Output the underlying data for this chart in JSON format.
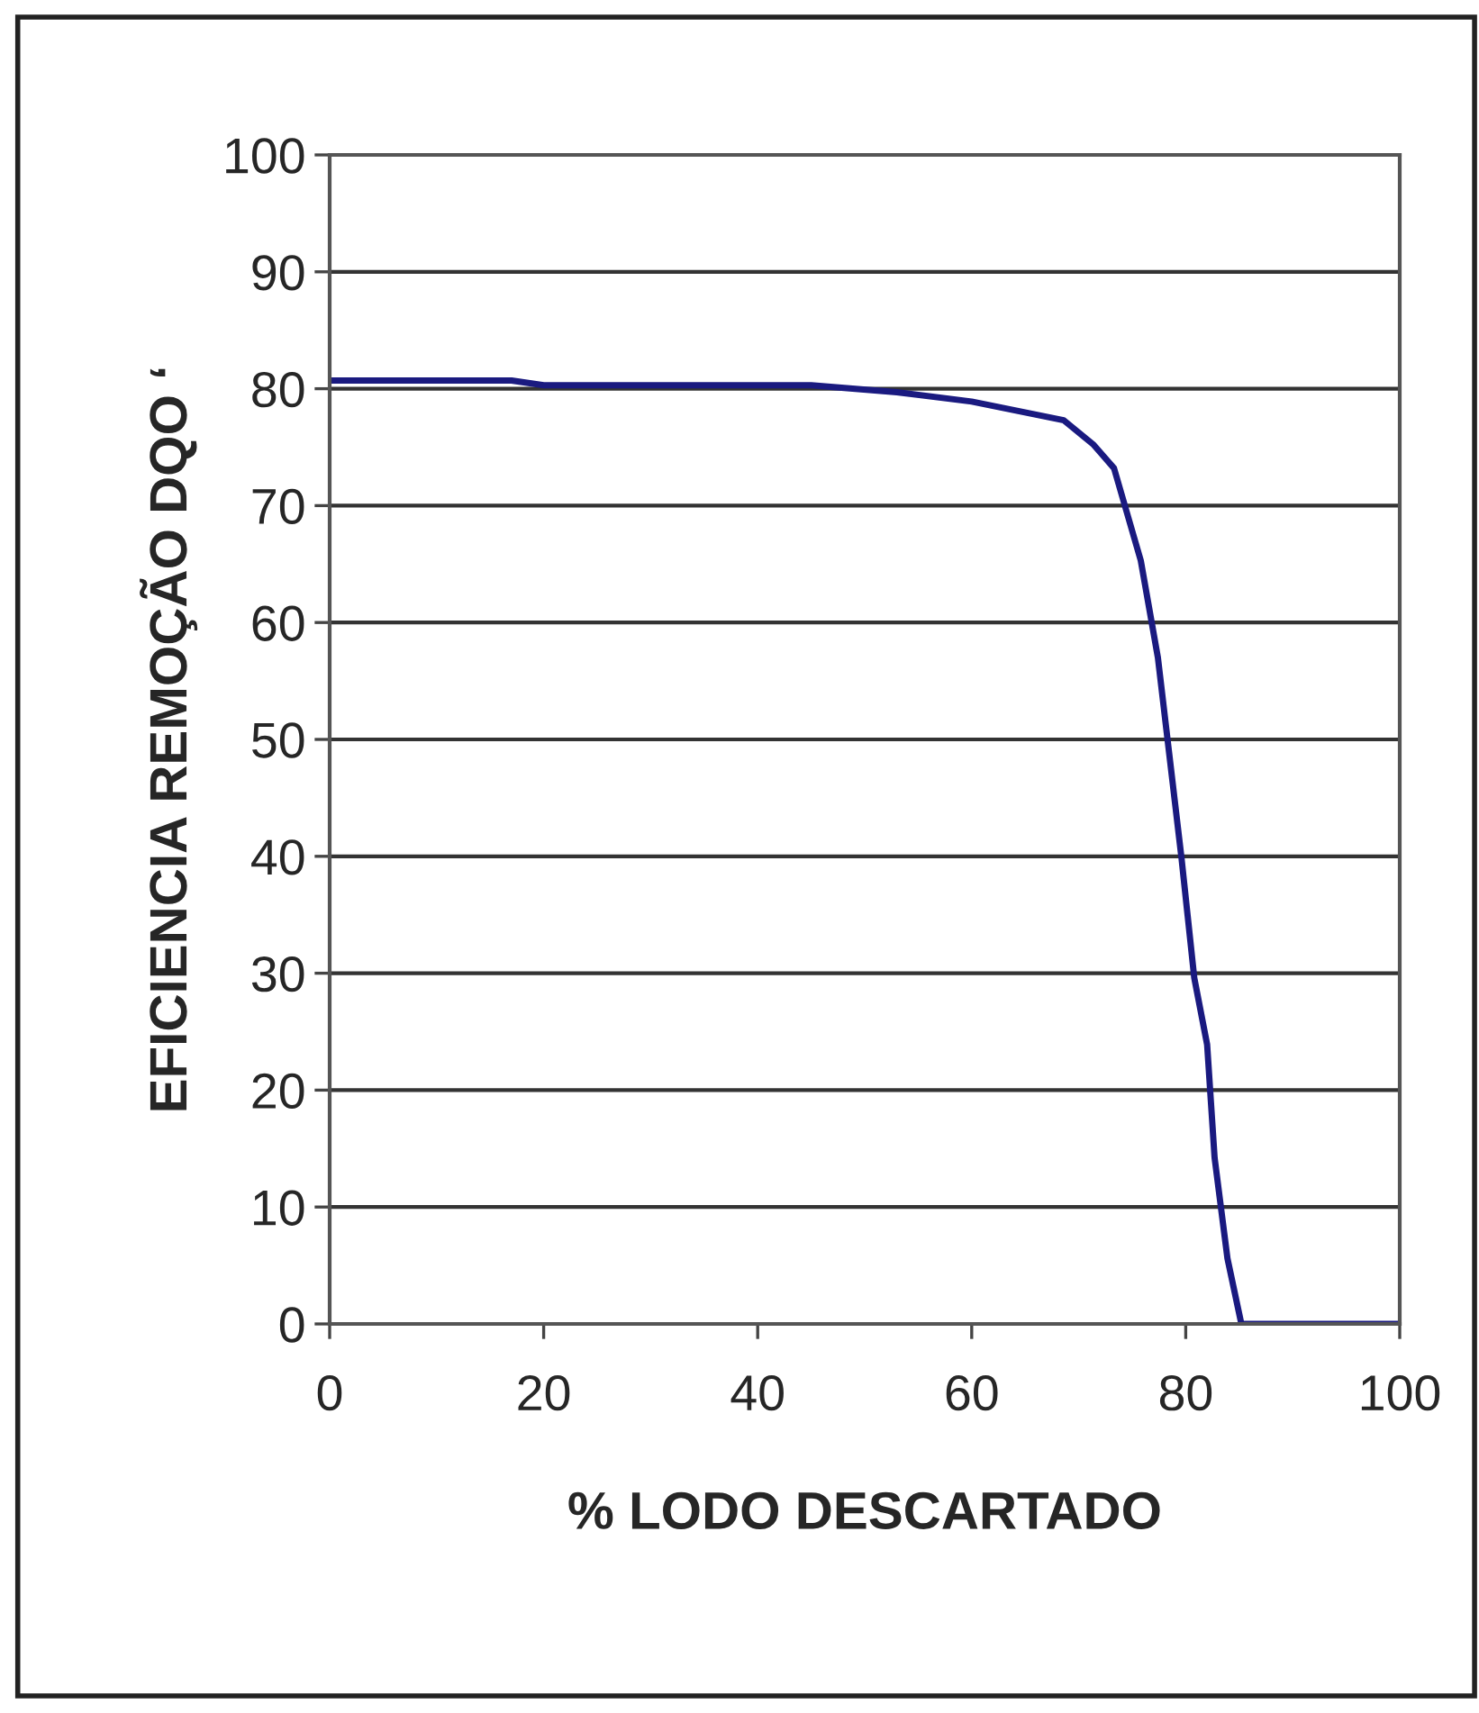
{
  "chart_data": {
    "type": "line",
    "xlabel": "% LODO DESCARTADO",
    "ylabel": "EFICIENCIA REMOÇÃO DQO ‘",
    "series": [
      {
        "color": "#1a1a80",
        "x": [
          0,
          17,
          20,
          45,
          53,
          60,
          68.6,
          71.4,
          73.3,
          75.8,
          77.4,
          79.6,
          80.8,
          82.0,
          82.7,
          83.9,
          85.2,
          100
        ],
        "values": [
          80.7,
          80.7,
          80.3,
          80.3,
          79.7,
          78.9,
          77.3,
          75.2,
          73.2,
          65.3,
          57.0,
          39.9,
          29.6,
          23.9,
          14.2,
          5.6,
          0,
          0
        ]
      }
    ],
    "xlim": [
      0,
      100
    ],
    "ylim": [
      0,
      100
    ],
    "xticks": [
      0,
      20,
      40,
      60,
      80,
      100
    ],
    "yticks": [
      0,
      10,
      20,
      30,
      40,
      50,
      60,
      70,
      80,
      90,
      100
    ],
    "grid": "y",
    "marker": "none",
    "line_style": "solid"
  }
}
